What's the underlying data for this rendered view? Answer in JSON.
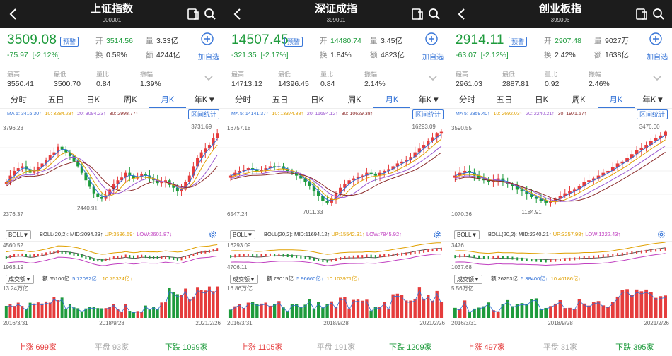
{
  "screens": [
    {
      "title": "上证指数",
      "code": "000001",
      "price": "3509.08",
      "alert": "预警",
      "change": "-75.97",
      "change_pct": "[-2.12%]",
      "open_k": "开",
      "open": "3514.56",
      "vol_k": "量",
      "vol": "3.33亿",
      "turn_k": "换",
      "turn": "0.59%",
      "amt_k": "额",
      "amt": "4244亿",
      "add_label": "加自选",
      "stats": [
        {
          "label": "最高",
          "value": "3550.41",
          "color": "red"
        },
        {
          "label": "最低",
          "value": "3500.70",
          "color": "green"
        },
        {
          "label": "量比",
          "value": "0.84",
          "color": "dark"
        },
        {
          "label": "振幅",
          "value": "1.39%",
          "color": "dark"
        }
      ],
      "tabs": [
        "分时",
        "五日",
        "日K",
        "周K",
        "月K",
        "年K▼"
      ],
      "ma": [
        {
          "t": "MA 5: 3416.30↑",
          "c": "#2f6fd6"
        },
        {
          "t": "10: 3284.23↑",
          "c": "#e0a000"
        },
        {
          "t": "20: 3094.23↑",
          "c": "#9a55d0"
        },
        {
          "t": "30: 2998.77↑",
          "c": "#8b2a2a"
        }
      ],
      "range_btn": "区间统计",
      "price_top": "3796.23",
      "price_bottom": "2376.37",
      "label_high": "3731.69",
      "label_low": "2440.91",
      "boll_sel": "BOLL▼",
      "boll_name": "BOLL(20,2):",
      "boll_mid": "MID:3094.23↑",
      "boll_up": "UP:3586.59↑",
      "boll_low": "LOW:2601.87↓",
      "boll_top": "4560.52",
      "boll_bottom": "1963.19",
      "vol_sel": "成交额▼",
      "vol_amt": "额:65100亿",
      "vol_ma5": "5:72092亿↓",
      "vol_ma10": "10:75324亿↓",
      "vol_top": "13.24万亿",
      "date_start": "2016/3/31",
      "date_mid": "2018/9/28",
      "date_end": "2021/2/26",
      "up_label": "上涨",
      "up_count": "699家",
      "flat_label": "平盘",
      "flat_count": "93家",
      "down_label": "下跌",
      "down_count": "1099家"
    },
    {
      "title": "深证成指",
      "code": "399001",
      "price": "14507.45",
      "alert": "预警",
      "change": "-321.35",
      "change_pct": "[-2.17%]",
      "open_k": "开",
      "open": "14480.74",
      "vol_k": "量",
      "vol": "3.45亿",
      "turn_k": "换",
      "turn": "1.84%",
      "amt_k": "额",
      "amt": "4823亿",
      "add_label": "加自选",
      "stats": [
        {
          "label": "最高",
          "value": "14713.12",
          "color": "red"
        },
        {
          "label": "最低",
          "value": "14396.45",
          "color": "green"
        },
        {
          "label": "量比",
          "value": "0.84",
          "color": "dark"
        },
        {
          "label": "振幅",
          "value": "2.14%",
          "color": "dark"
        }
      ],
      "tabs": [
        "分时",
        "五日",
        "日K",
        "周K",
        "月K",
        "年K▼"
      ],
      "ma": [
        {
          "t": "MA 5: 14141.37↑",
          "c": "#2f6fd6"
        },
        {
          "t": "10: 13374.88↑",
          "c": "#e0a000"
        },
        {
          "t": "20: 11694.12↑",
          "c": "#9a55d0"
        },
        {
          "t": "30: 10629.38↑",
          "c": "#8b2a2a"
        }
      ],
      "range_btn": "区间统计",
      "price_top": "16757.18",
      "price_bottom": "6547.24",
      "label_high": "16293.09",
      "label_low": "7011.33",
      "boll_sel": "BOLL▼",
      "boll_name": "BOLL(20,2):",
      "boll_mid": "MID:11694.12↑",
      "boll_up": "UP:15542.31↑",
      "boll_low": "LOW:7845.92↑",
      "boll_top": "16293.09",
      "boll_bottom": "4706.11",
      "vol_sel": "成交额▼",
      "vol_amt": "额:79015亿",
      "vol_ma5": "5:96660亿↓",
      "vol_ma10": "10:103971亿↓",
      "vol_top": "16.86万亿",
      "date_start": "2016/3/31",
      "date_mid": "2018/9/28",
      "date_end": "2021/2/26",
      "up_label": "上涨",
      "up_count": "1105家",
      "flat_label": "平盘",
      "flat_count": "191家",
      "down_label": "下跌",
      "down_count": "1209家"
    },
    {
      "title": "创业板指",
      "code": "399006",
      "price": "2914.11",
      "alert": "预警",
      "change": "-63.07",
      "change_pct": "[-2.12%]",
      "open_k": "开",
      "open": "2907.48",
      "vol_k": "量",
      "vol": "9027万",
      "turn_k": "换",
      "turn": "2.42%",
      "amt_k": "额",
      "amt": "1638亿",
      "add_label": "加自选",
      "stats": [
        {
          "label": "最高",
          "value": "2961.03",
          "color": "red"
        },
        {
          "label": "最低",
          "value": "2887.81",
          "color": "green"
        },
        {
          "label": "量比",
          "value": "0.92",
          "color": "dark"
        },
        {
          "label": "振幅",
          "value": "2.46%",
          "color": "dark"
        }
      ],
      "tabs": [
        "分时",
        "五日",
        "日K",
        "周K",
        "月K",
        "年K▼"
      ],
      "ma": [
        {
          "t": "MA 5: 2859.40↑",
          "c": "#2f6fd6"
        },
        {
          "t": "10: 2692.03↑",
          "c": "#e0a000"
        },
        {
          "t": "20: 2240.21↑",
          "c": "#9a55d0"
        },
        {
          "t": "30: 1971.57↑",
          "c": "#8b2a2a"
        }
      ],
      "range_btn": "区间统计",
      "price_top": "3590.55",
      "price_bottom": "1070.36",
      "label_high": "3476.00",
      "label_low": "1184.91",
      "boll_sel": "BOLL▼",
      "boll_name": "BOLL(20,2):",
      "boll_mid": "MID:2240.21↑",
      "boll_up": "UP:3257.98↑",
      "boll_low": "LOW:1222.43↑",
      "boll_top": "3476",
      "boll_bottom": "1037.68",
      "vol_sel": "成交额▼",
      "vol_amt": "额:26253亿",
      "vol_ma5": "5:38400亿↓",
      "vol_ma10": "10:40186亿↓",
      "vol_top": "5.56万亿",
      "date_start": "2016/3/31",
      "date_mid": "2018/9/28",
      "date_end": "2021/2/26",
      "up_label": "上涨",
      "up_count": "497家",
      "flat_label": "平盘",
      "flat_count": "31家",
      "down_label": "下跌",
      "down_count": "395家"
    }
  ],
  "colors": {
    "rise": "#e53c3c",
    "fall": "#1e9b3c",
    "accent": "#3a77d8",
    "header": "#1c1c1c"
  }
}
